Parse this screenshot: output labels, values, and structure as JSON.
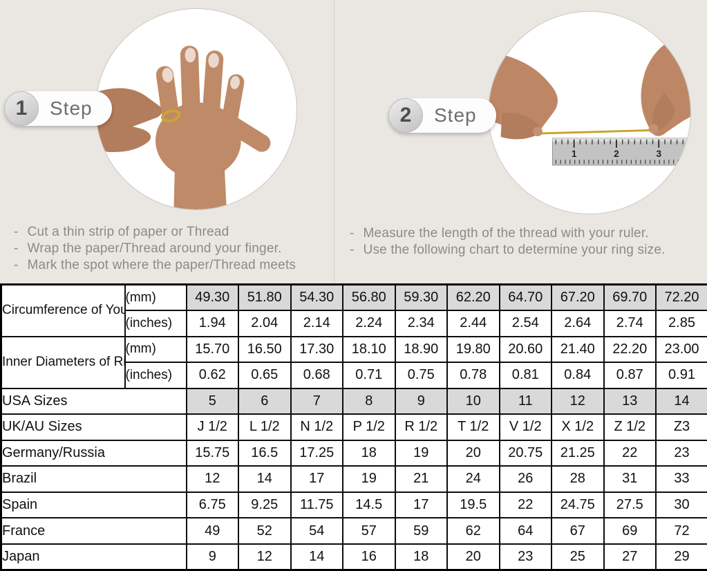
{
  "steps": [
    {
      "number": "1",
      "label": "Step",
      "instructions": [
        "Cut a thin strip of paper or Thread",
        "Wrap the paper/Thread around your finger.",
        "Mark the spot where the paper/Thread meets"
      ]
    },
    {
      "number": "2",
      "label": "Step",
      "instructions": [
        "Measure the length of the thread with your ruler.",
        "Use the following chart to determine your ring size."
      ]
    }
  ],
  "ruler": {
    "marks": [
      "1",
      "2",
      "3"
    ]
  },
  "colors": {
    "page_background": "#eae7e2",
    "table_shaded_cell": "#d9d9d9",
    "thread_gold": "#c9a227",
    "skin_tone": "#bf8a68",
    "instruction_text": "#8a8a8a",
    "table_border": "#000000"
  },
  "table": {
    "header_groups": [
      {
        "label": "Circumference of Your Finger",
        "rows": [
          {
            "unit": "(mm)",
            "shaded": true,
            "values": [
              "49.30",
              "51.80",
              "54.30",
              "56.80",
              "59.30",
              "62.20",
              "64.70",
              "67.20",
              "69.70",
              "72.20"
            ]
          },
          {
            "unit": "(inches)",
            "shaded": false,
            "values": [
              "1.94",
              "2.04",
              "2.14",
              "2.24",
              "2.34",
              "2.44",
              "2.54",
              "2.64",
              "2.74",
              "2.85"
            ]
          }
        ]
      },
      {
        "label": "Inner Diameters of Rings",
        "rows": [
          {
            "unit": "(mm)",
            "shaded": false,
            "values": [
              "15.70",
              "16.50",
              "17.30",
              "18.10",
              "18.90",
              "19.80",
              "20.60",
              "21.40",
              "22.20",
              "23.00"
            ]
          },
          {
            "unit": "(inches)",
            "shaded": false,
            "values": [
              "0.62",
              "0.65",
              "0.68",
              "0.71",
              "0.75",
              "0.78",
              "0.81",
              "0.84",
              "0.87",
              "0.91"
            ]
          }
        ]
      }
    ],
    "size_rows": [
      {
        "label": "USA Sizes",
        "shaded": true,
        "values": [
          "5",
          "6",
          "7",
          "8",
          "9",
          "10",
          "11",
          "12",
          "13",
          "14"
        ]
      },
      {
        "label": "UK/AU Sizes",
        "shaded": false,
        "values": [
          "J 1/2",
          "L 1/2",
          "N 1/2",
          "P 1/2",
          "R 1/2",
          "T 1/2",
          "V 1/2",
          "X 1/2",
          "Z 1/2",
          "Z3"
        ]
      },
      {
        "label": "Germany/Russia",
        "shaded": false,
        "values": [
          "15.75",
          "16.5",
          "17.25",
          "18",
          "19",
          "20",
          "20.75",
          "21.25",
          "22",
          "23"
        ]
      },
      {
        "label": "Brazil",
        "shaded": false,
        "values": [
          "12",
          "14",
          "17",
          "19",
          "21",
          "24",
          "26",
          "28",
          "31",
          "33"
        ]
      },
      {
        "label": "Spain",
        "shaded": false,
        "values": [
          "6.75",
          "9.25",
          "11.75",
          "14.5",
          "17",
          "19.5",
          "22",
          "24.75",
          "27.5",
          "30"
        ]
      },
      {
        "label": "France",
        "shaded": false,
        "values": [
          "49",
          "52",
          "54",
          "57",
          "59",
          "62",
          "64",
          "67",
          "69",
          "72"
        ]
      },
      {
        "label": "Japan",
        "shaded": false,
        "values": [
          "9",
          "12",
          "14",
          "16",
          "18",
          "20",
          "23",
          "25",
          "27",
          "29"
        ]
      }
    ]
  }
}
